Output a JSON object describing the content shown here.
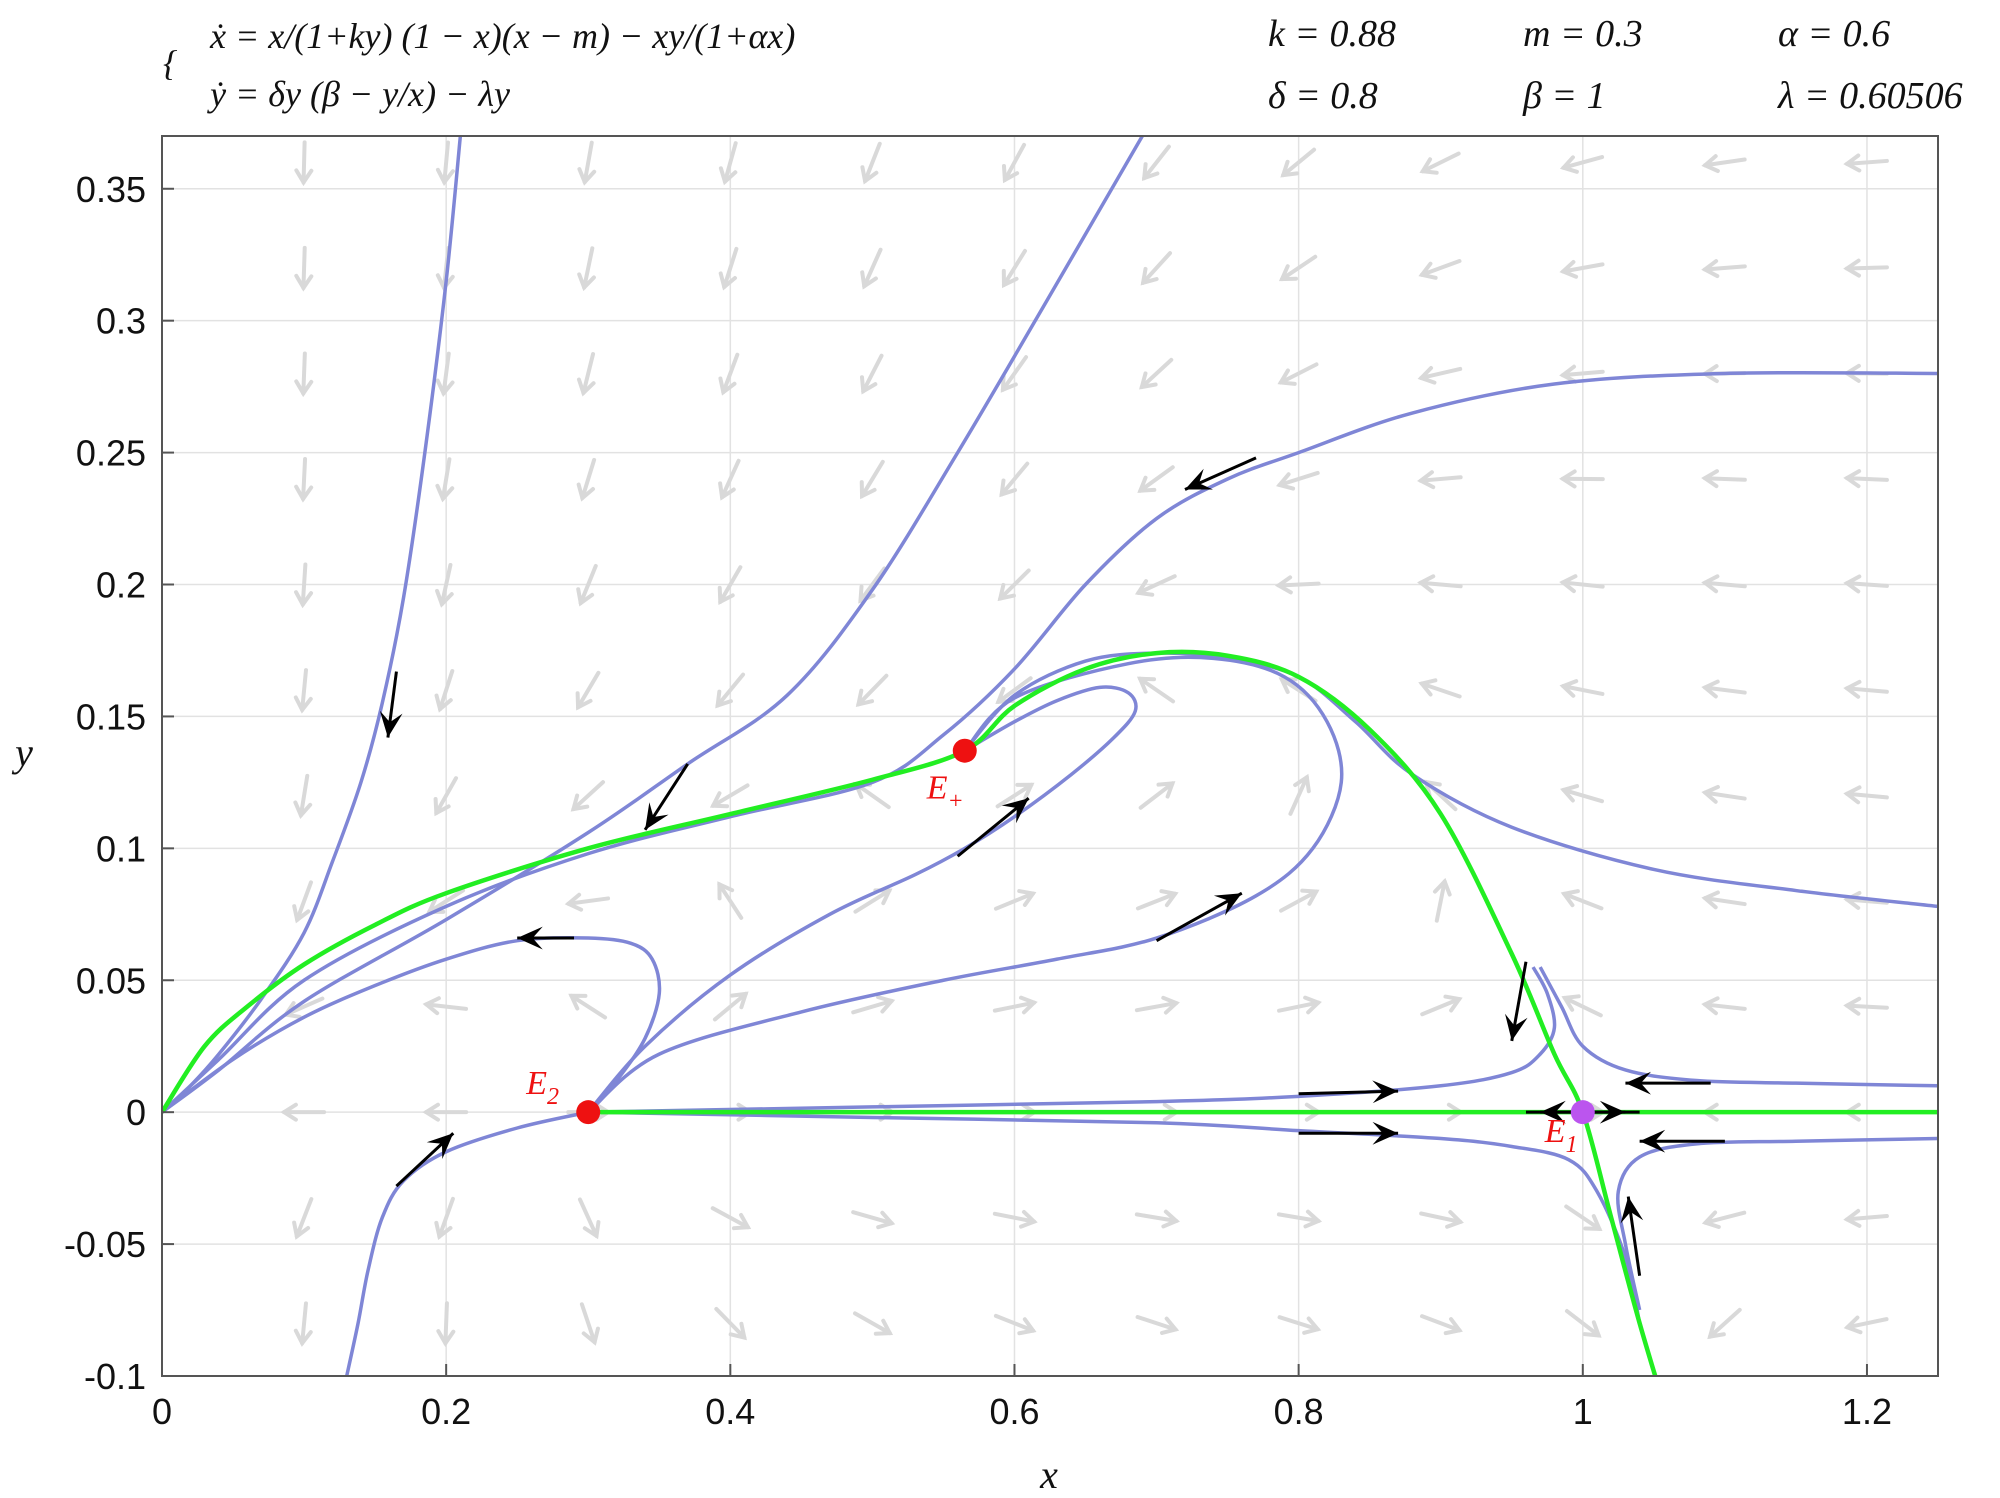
{
  "equations": {
    "brace": "{",
    "line1": "ẋ = x/(1+ky) (1 − x)(x − m) − xy/(1+αx)",
    "line2": "ẏ = δy (β − y/x) − λy"
  },
  "params": [
    {
      "label": "k = 0.88"
    },
    {
      "label": "m = 0.3"
    },
    {
      "label": "α = 0.6"
    },
    {
      "label": "δ = 0.8"
    },
    {
      "label": "β = 1"
    },
    {
      "label": "λ = 0.60506"
    }
  ],
  "colors": {
    "trajectory": "#7f86d6",
    "separatrix": "#22ee22",
    "field_arrow": "#d9d9d9",
    "equilibrium": "#ee1111",
    "saddle_point": "#bb55ee",
    "direction_arrow": "#000000",
    "grid": "#e2e2e2",
    "axes": "#555555"
  },
  "chart_data": {
    "type": "phase_portrait",
    "xlabel": "x",
    "ylabel": "y",
    "xlim": [
      0,
      1.25
    ],
    "ylim": [
      -0.1,
      0.37
    ],
    "xticks": [
      0,
      0.2,
      0.4,
      0.6,
      0.8,
      1,
      1.2
    ],
    "xtick_labels": [
      "0",
      "0.2",
      "0.4",
      "0.6",
      "0.8",
      "1",
      "1.2"
    ],
    "yticks": [
      -0.1,
      -0.05,
      0,
      0.05,
      0.1,
      0.15,
      0.2,
      0.25,
      0.3,
      0.35
    ],
    "ytick_labels": [
      "-0.1",
      "-0.05",
      "0",
      "0.05",
      "0.1",
      "0.15",
      "0.2",
      "0.25",
      "0.3",
      "0.35"
    ],
    "grid": true,
    "params": {
      "k": 0.88,
      "m": 0.3,
      "alpha": 0.6,
      "delta": 0.8,
      "beta": 1,
      "lambda": 0.60506
    },
    "equilibria": [
      {
        "label": "E+",
        "x": 0.565,
        "y": 0.137,
        "kind": "focus"
      },
      {
        "label": "E2",
        "x": 0.3,
        "y": 0.0,
        "kind": "node"
      },
      {
        "label": "E1",
        "x": 1.0,
        "y": 0.0,
        "kind": "saddle"
      }
    ],
    "separatrices": [
      {
        "name": "sep-upper",
        "points": [
          [
            0,
            0
          ],
          [
            0.03,
            0.025
          ],
          [
            0.06,
            0.04
          ],
          [
            0.1,
            0.056
          ],
          [
            0.15,
            0.071
          ],
          [
            0.2,
            0.083
          ],
          [
            0.3,
            0.1
          ],
          [
            0.4,
            0.113
          ],
          [
            0.5,
            0.126
          ],
          [
            0.565,
            0.137
          ],
          [
            0.6,
            0.154
          ],
          [
            0.65,
            0.168
          ],
          [
            0.7,
            0.174
          ],
          [
            0.75,
            0.173
          ],
          [
            0.8,
            0.165
          ],
          [
            0.85,
            0.145
          ],
          [
            0.9,
            0.113
          ],
          [
            0.95,
            0.06
          ],
          [
            0.98,
            0.022
          ],
          [
            1.0,
            0.0
          ],
          [
            1.02,
            -0.04
          ],
          [
            1.04,
            -0.08
          ],
          [
            1.06,
            -0.116
          ]
        ]
      },
      {
        "name": "sep-axis",
        "points": [
          [
            0.3,
            0
          ],
          [
            1.25,
            0
          ]
        ]
      }
    ],
    "trajectories": [
      {
        "name": "traj-left-steep",
        "points": [
          [
            0.21,
            0.37
          ],
          [
            0.2,
            0.315
          ],
          [
            0.185,
            0.25
          ],
          [
            0.17,
            0.195
          ],
          [
            0.155,
            0.155
          ],
          [
            0.14,
            0.125
          ],
          [
            0.12,
            0.095
          ],
          [
            0.1,
            0.068
          ],
          [
            0.07,
            0.043
          ],
          [
            0.04,
            0.022
          ],
          [
            0.02,
            0.01
          ],
          [
            0,
            0
          ]
        ]
      },
      {
        "name": "traj-left-diag",
        "points": [
          [
            0.69,
            0.37
          ],
          [
            0.62,
            0.305
          ],
          [
            0.56,
            0.25
          ],
          [
            0.5,
            0.198
          ],
          [
            0.44,
            0.158
          ],
          [
            0.37,
            0.132
          ],
          [
            0.3,
            0.106
          ],
          [
            0.2,
            0.073
          ],
          [
            0.1,
            0.042
          ],
          [
            0.04,
            0.016
          ],
          [
            0,
            0
          ]
        ]
      },
      {
        "name": "traj-top-right",
        "points": [
          [
            1.25,
            0.28
          ],
          [
            1.1,
            0.28
          ],
          [
            0.98,
            0.276
          ],
          [
            0.88,
            0.265
          ],
          [
            0.8,
            0.25
          ],
          [
            0.75,
            0.24
          ],
          [
            0.7,
            0.225
          ],
          [
            0.65,
            0.2
          ],
          [
            0.6,
            0.168
          ],
          [
            0.55,
            0.143
          ],
          [
            0.5,
            0.125
          ],
          [
            0.4,
            0.112
          ],
          [
            0.3,
            0.098
          ],
          [
            0.2,
            0.078
          ],
          [
            0.1,
            0.05
          ],
          [
            0.04,
            0.02
          ],
          [
            0,
            0
          ]
        ]
      },
      {
        "name": "traj-right-high",
        "points": [
          [
            1.25,
            0.078
          ],
          [
            1.15,
            0.084
          ],
          [
            1.05,
            0.092
          ],
          [
            0.95,
            0.108
          ],
          [
            0.88,
            0.128
          ],
          [
            0.84,
            0.148
          ],
          [
            0.8,
            0.165
          ],
          [
            0.75,
            0.172
          ],
          [
            0.7,
            0.174
          ],
          [
            0.65,
            0.171
          ],
          [
            0.6,
            0.158
          ],
          [
            0.565,
            0.137
          ]
        ]
      },
      {
        "name": "traj-outer-spiral",
        "points": [
          [
            0.3,
            0
          ],
          [
            0.35,
            0.022
          ],
          [
            0.45,
            0.038
          ],
          [
            0.55,
            0.05
          ],
          [
            0.63,
            0.058
          ],
          [
            0.7,
            0.066
          ],
          [
            0.77,
            0.082
          ],
          [
            0.81,
            0.1
          ],
          [
            0.83,
            0.125
          ],
          [
            0.82,
            0.148
          ],
          [
            0.79,
            0.165
          ],
          [
            0.74,
            0.172
          ],
          [
            0.68,
            0.17
          ],
          [
            0.6,
            0.157
          ],
          [
            0.565,
            0.137
          ]
        ]
      },
      {
        "name": "traj-inner-spiral",
        "points": [
          [
            0.3,
            0
          ],
          [
            0.34,
            0.025
          ],
          [
            0.4,
            0.052
          ],
          [
            0.47,
            0.075
          ],
          [
            0.53,
            0.09
          ],
          [
            0.565,
            0.1
          ],
          [
            0.6,
            0.112
          ],
          [
            0.64,
            0.128
          ],
          [
            0.67,
            0.142
          ],
          [
            0.685,
            0.152
          ],
          [
            0.68,
            0.159
          ],
          [
            0.66,
            0.161
          ],
          [
            0.63,
            0.156
          ],
          [
            0.6,
            0.148
          ],
          [
            0.565,
            0.137
          ]
        ]
      },
      {
        "name": "traj-loop-left",
        "points": [
          [
            0.3,
            0
          ],
          [
            0.32,
            0.012
          ],
          [
            0.34,
            0.028
          ],
          [
            0.35,
            0.045
          ],
          [
            0.345,
            0.058
          ],
          [
            0.33,
            0.064
          ],
          [
            0.3,
            0.066
          ],
          [
            0.25,
            0.065
          ],
          [
            0.2,
            0.058
          ],
          [
            0.15,
            0.048
          ],
          [
            0.1,
            0.036
          ],
          [
            0.05,
            0.02
          ],
          [
            0,
            0
          ]
        ]
      },
      {
        "name": "traj-upper-axis",
        "points": [
          [
            0.3,
            0
          ],
          [
            0.5,
            0.002
          ],
          [
            0.7,
            0.004
          ],
          [
            0.8,
            0.006
          ],
          [
            0.9,
            0.01
          ],
          [
            0.95,
            0.015
          ],
          [
            0.97,
            0.022
          ],
          [
            0.98,
            0.032
          ],
          [
            0.975,
            0.045
          ],
          [
            0.965,
            0.055
          ]
        ]
      },
      {
        "name": "traj-lower-axis",
        "points": [
          [
            0.3,
            0
          ],
          [
            0.5,
            -0.002
          ],
          [
            0.7,
            -0.004
          ],
          [
            0.8,
            -0.007
          ],
          [
            0.9,
            -0.01
          ],
          [
            0.95,
            -0.013
          ],
          [
            0.99,
            -0.018
          ],
          [
            1.01,
            -0.03
          ],
          [
            1.03,
            -0.055
          ],
          [
            1.04,
            -0.08
          ]
        ]
      },
      {
        "name": "traj-right-upper",
        "points": [
          [
            1.25,
            0.01
          ],
          [
            1.15,
            0.011
          ],
          [
            1.08,
            0.012
          ],
          [
            1.03,
            0.016
          ],
          [
            1.0,
            0.025
          ],
          [
            0.985,
            0.04
          ],
          [
            0.97,
            0.055
          ]
        ]
      },
      {
        "name": "traj-right-lower",
        "points": [
          [
            1.25,
            -0.01
          ],
          [
            1.15,
            -0.011
          ],
          [
            1.08,
            -0.012
          ],
          [
            1.04,
            -0.017
          ],
          [
            1.025,
            -0.03
          ],
          [
            1.03,
            -0.05
          ],
          [
            1.04,
            -0.075
          ]
        ]
      },
      {
        "name": "traj-lower-left",
        "points": [
          [
            0.3,
            0
          ],
          [
            0.25,
            -0.006
          ],
          [
            0.2,
            -0.015
          ],
          [
            0.17,
            -0.026
          ],
          [
            0.155,
            -0.04
          ],
          [
            0.145,
            -0.06
          ],
          [
            0.138,
            -0.08
          ],
          [
            0.13,
            -0.1
          ]
        ]
      }
    ],
    "direction_arrows": [
      {
        "x": 0.165,
        "y": 0.167,
        "dx": -0.006,
        "dy": -0.025
      },
      {
        "x": 0.37,
        "y": 0.132,
        "dx": -0.03,
        "dy": -0.025
      },
      {
        "x": 0.77,
        "y": 0.248,
        "dx": -0.05,
        "dy": -0.012
      },
      {
        "x": 0.29,
        "y": 0.066,
        "dx": -0.04,
        "dy": 0.0
      },
      {
        "x": 0.56,
        "y": 0.097,
        "dx": 0.05,
        "dy": 0.022
      },
      {
        "x": 0.7,
        "y": 0.065,
        "dx": 0.06,
        "dy": 0.018
      },
      {
        "x": 0.8,
        "y": 0.007,
        "dx": 0.07,
        "dy": 0.001
      },
      {
        "x": 0.8,
        "y": -0.008,
        "dx": 0.07,
        "dy": 0.0
      },
      {
        "x": 0.96,
        "y": 0.057,
        "dx": -0.01,
        "dy": -0.03
      },
      {
        "x": 0.96,
        "y": 0.0,
        "dx": 0.07,
        "dy": 0.0
      },
      {
        "x": 1.04,
        "y": 0.0,
        "dx": -0.07,
        "dy": 0.0
      },
      {
        "x": 1.09,
        "y": 0.011,
        "dx": -0.06,
        "dy": 0.0
      },
      {
        "x": 1.1,
        "y": -0.011,
        "dx": -0.06,
        "dy": 0.0
      },
      {
        "x": 1.04,
        "y": -0.062,
        "dx": -0.008,
        "dy": 0.03
      },
      {
        "x": 0.165,
        "y": -0.028,
        "dx": 0.04,
        "dy": 0.02
      }
    ]
  }
}
